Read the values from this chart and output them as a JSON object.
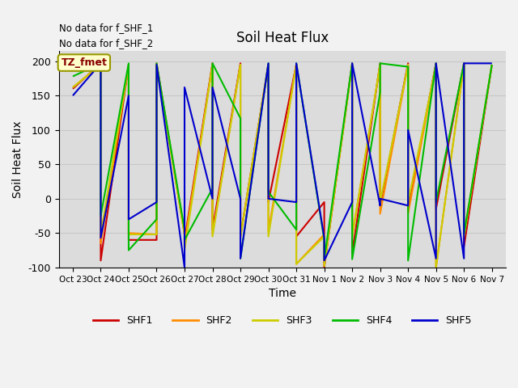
{
  "title": "Soil Heat Flux",
  "ylabel": "Soil Heat Flux",
  "xlabel": "Time",
  "ylim": [
    -100,
    215
  ],
  "yticks": [
    -100,
    -50,
    0,
    50,
    100,
    150,
    200
  ],
  "annotations": [
    "No data for f_SHF_1",
    "No data for f_SHF_2"
  ],
  "legend_label": "TZ_fmet",
  "x_labels": [
    "Oct 23",
    "Oct 24",
    "Oct 25",
    "Oct 26",
    "Oct 27",
    "Oct 28",
    "Oct 29",
    "Oct 30",
    "Oct 31",
    "Nov 1",
    "Nov 2",
    "Nov 3",
    "Nov 4",
    "Nov 5",
    "Nov 6",
    "Nov 7"
  ],
  "series": {
    "SHF1": {
      "color": "#cc0000",
      "x": [
        0,
        1,
        1,
        2,
        2,
        3,
        3,
        4,
        4,
        5,
        5,
        6,
        6,
        7,
        7,
        8,
        8,
        9,
        9,
        10,
        10,
        11,
        11,
        12,
        12,
        13,
        13,
        14,
        14,
        15
      ],
      "y": [
        160,
        197,
        -90,
        195,
        -60,
        -60,
        197,
        -50,
        -60,
        197,
        -45,
        197,
        -55,
        195,
        -5,
        195,
        -55,
        -5,
        -100,
        197,
        -80,
        197,
        -10,
        197,
        -15,
        197,
        -15,
        197,
        -70,
        195
      ]
    },
    "SHF2": {
      "color": "#ff8c00",
      "x": [
        0,
        1,
        1,
        2,
        2,
        3,
        3,
        4,
        4,
        5,
        5,
        6,
        6,
        7,
        7,
        8,
        8,
        9,
        9,
        10,
        10,
        11,
        11,
        12,
        12,
        13,
        13,
        14,
        14,
        15
      ],
      "y": [
        162,
        195,
        -65,
        195,
        -50,
        -52,
        195,
        -52,
        -65,
        195,
        -52,
        195,
        -55,
        195,
        -48,
        195,
        -95,
        -52,
        -98,
        195,
        -55,
        195,
        -22,
        195,
        -22,
        195,
        -100,
        195,
        -55,
        195
      ]
    },
    "SHF3": {
      "color": "#cccc00",
      "x": [
        0,
        1,
        1,
        2,
        2,
        3,
        3,
        4,
        4,
        5,
        5,
        6,
        6,
        7,
        7,
        8,
        8,
        9,
        9,
        10,
        10,
        11,
        11,
        12,
        12,
        13,
        13,
        14,
        14,
        15
      ],
      "y": [
        162,
        195,
        -52,
        195,
        -52,
        -52,
        195,
        -52,
        -75,
        195,
        -55,
        195,
        -55,
        195,
        -55,
        195,
        -95,
        -55,
        -98,
        195,
        -55,
        195,
        -5,
        195,
        -5,
        195,
        -100,
        195,
        -55,
        195
      ]
    },
    "SHF4": {
      "color": "#00bb00",
      "x": [
        0,
        1,
        1,
        2,
        2,
        3,
        3,
        4,
        4,
        5,
        5,
        6,
        6,
        7,
        7,
        8,
        8,
        9,
        9,
        10,
        10,
        11,
        11,
        12,
        12,
        13,
        13,
        14,
        14,
        15
      ],
      "y": [
        178,
        197,
        -25,
        197,
        -75,
        -30,
        197,
        -45,
        -60,
        15,
        197,
        117,
        -87,
        197,
        10,
        -45,
        197,
        -60,
        -88,
        197,
        -88,
        155,
        197,
        192,
        -90,
        197,
        -5,
        197,
        -52,
        195
      ]
    },
    "SHF5": {
      "color": "#0000cc",
      "x": [
        0,
        1,
        1,
        2,
        2,
        3,
        3,
        4,
        4,
        5,
        5,
        6,
        6,
        7,
        7,
        8,
        8,
        9,
        9,
        10,
        10,
        11,
        11,
        12,
        12,
        13,
        13,
        14,
        14,
        15
      ],
      "y": [
        150,
        197,
        -57,
        150,
        -30,
        -5,
        195,
        -100,
        162,
        0,
        162,
        0,
        -87,
        197,
        0,
        -5,
        197,
        -57,
        -90,
        -5,
        197,
        -10,
        0,
        -10,
        100,
        -87,
        197,
        -87,
        197,
        197
      ]
    }
  },
  "background_color": "#e8e8e8",
  "plot_bg_color": "#dcdcdc",
  "grid_color": "#c8c8c8",
  "legend_entries": [
    "SHF1",
    "SHF2",
    "SHF3",
    "SHF4",
    "SHF5"
  ],
  "legend_colors": [
    "#cc0000",
    "#ff8c00",
    "#cccc00",
    "#00bb00",
    "#0000cc"
  ],
  "figsize": [
    6.4,
    4.8
  ],
  "dpi": 100
}
